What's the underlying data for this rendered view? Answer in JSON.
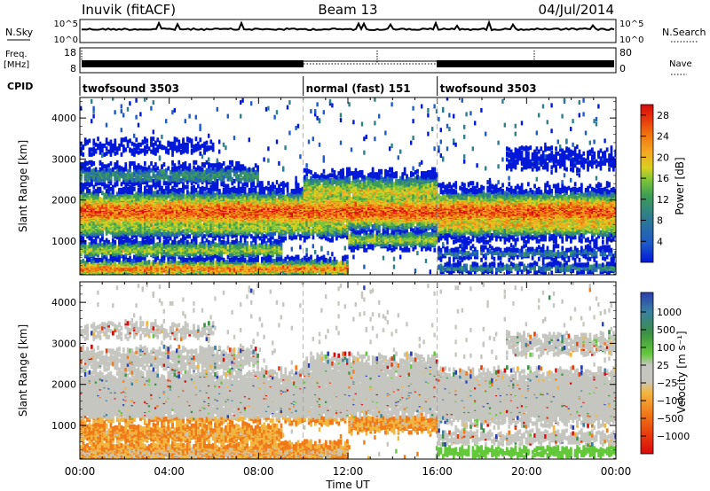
{
  "header": {
    "station": "Inuvik (fitACF)",
    "beam": "Beam 13",
    "date": "04/Jul/2014"
  },
  "top_panels": {
    "nsky_label": "N.Sky",
    "nsearch_label": "N.Search",
    "nsky_ticks": [
      "10^5",
      "10^0"
    ],
    "nsearch_ticks": [
      "10^5",
      "10^0"
    ],
    "freq_label": "Freq.",
    "freq_unit": "[MHz]",
    "freq_ticks": [
      "18",
      "8"
    ],
    "nave_label": "Nave",
    "nave_ticks": [
      "80",
      "0"
    ],
    "cpid_label": "CPID",
    "cpid_segments": [
      {
        "name": "twofsound 3503",
        "start": 0,
        "end": 10
      },
      {
        "name": "normal (fast) 151",
        "start": 10,
        "end": 16
      },
      {
        "name": "twofsound 3503",
        "start": 16,
        "end": 24
      }
    ]
  },
  "chart_data": [
    {
      "type": "heatmap",
      "panel": "power",
      "ylabel": "Slant Range [km]",
      "y_ticks": [
        1000,
        2000,
        3000,
        4000
      ],
      "ylim": [
        180,
        4500
      ],
      "xlim": [
        0,
        24
      ],
      "x_ticks": [
        "00:00",
        "04:00",
        "08:00",
        "12:00",
        "16:00",
        "20:00",
        "00:00"
      ],
      "colorbar": {
        "label": "Power [dB]",
        "ticks": [
          4,
          8,
          12,
          16,
          20,
          24,
          28
        ],
        "range": [
          0,
          30
        ],
        "colors": [
          "#0018d8",
          "#1e5ac8",
          "#2f7f8a",
          "#3d9c55",
          "#7ac43a",
          "#d8d020",
          "#f5a623",
          "#f07a10",
          "#e83c0c",
          "#d80a0a"
        ]
      }
    },
    {
      "type": "heatmap",
      "panel": "velocity",
      "ylabel": "Slant Range [km]",
      "xlabel": "Time UT",
      "y_ticks": [
        1000,
        2000,
        3000,
        4000
      ],
      "ylim": [
        180,
        4500
      ],
      "xlim": [
        0,
        24
      ],
      "x_ticks": [
        "00:00",
        "04:00",
        "08:00",
        "12:00",
        "16:00",
        "20:00",
        "00:00"
      ],
      "colorbar": {
        "label": "Velocity [m s⁻¹]",
        "ticks": [
          "1000",
          "500",
          "100",
          "25",
          "−25",
          "−100",
          "−500",
          "−1000"
        ],
        "colors": [
          "#2a3fb0",
          "#3a80a0",
          "#3b8f46",
          "#63c83a",
          "#c6c6c0",
          "#c6c6c0",
          "#f2b640",
          "#f07a18",
          "#e83c0c",
          "#d80a0a"
        ]
      }
    }
  ]
}
